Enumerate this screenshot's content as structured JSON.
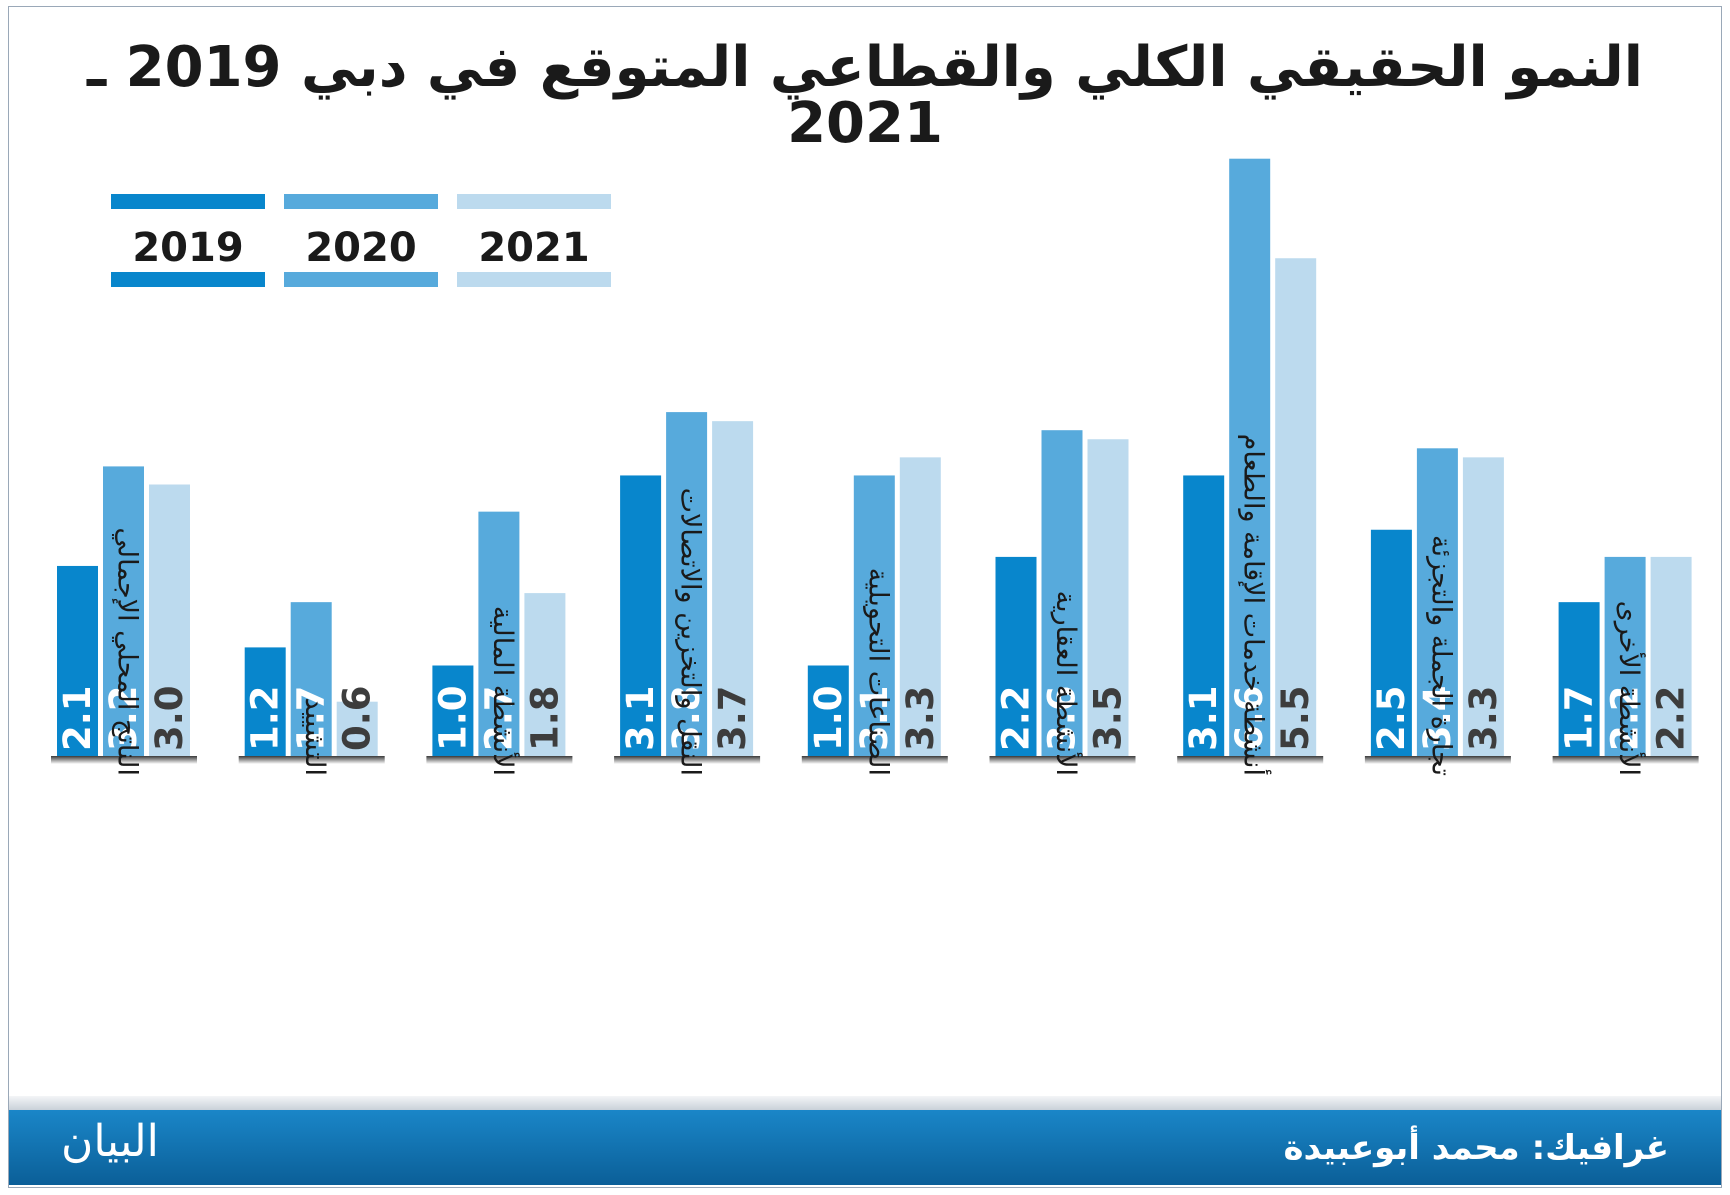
{
  "title": "النمو الحقيقي الكلي والقطاعي المتوقع في دبي 2019 ـ 2021",
  "colors": {
    "y2019": "#0886cc",
    "y2020": "#57aadc",
    "y2021": "#bcdaee"
  },
  "footer": {
    "credit": "غرافيك: محمد أبوعبيدة",
    "logo": "البيان"
  },
  "chart_data": {
    "type": "bar",
    "categories": [
      "الناتج المحلي الإجمالي",
      "التشييد",
      "الأنشطة المالية",
      "النقل والتخزين والاتصالات",
      "الصناعات التحويلية",
      "الأنشطة العقارية",
      "أنشطة خدمات الإقامة والطعام",
      "تجارة الجملة والتجزئة",
      "الأنشطة الأخرى"
    ],
    "series": [
      {
        "name": "2019",
        "values": [
          2.1,
          1.2,
          1.0,
          3.1,
          1.0,
          2.2,
          3.1,
          2.5,
          1.7
        ]
      },
      {
        "name": "2020",
        "values": [
          3.2,
          1.7,
          2.7,
          3.8,
          3.1,
          3.6,
          6.6,
          3.4,
          2.2
        ]
      },
      {
        "name": "2021",
        "values": [
          3.0,
          0.6,
          1.8,
          3.7,
          3.3,
          3.5,
          5.5,
          3.3,
          2.2
        ]
      }
    ],
    "value_labels": [
      [
        "2.1",
        "3.2",
        "3.0"
      ],
      [
        "1.2",
        "1.7",
        "0.6"
      ],
      [
        "1.0",
        "2.7",
        "1.8"
      ],
      [
        "3.1",
        "3.8",
        "3.7"
      ],
      [
        "1.0",
        "3.1",
        "3.3"
      ],
      [
        "2.2",
        "3.6",
        "3.5"
      ],
      [
        "3.1",
        "6.6",
        "5.5"
      ],
      [
        "2.5",
        "3.4",
        "3.3"
      ],
      [
        "1.7",
        "2.2",
        "2.2"
      ]
    ],
    "legend": [
      "2019",
      "2020",
      "2021"
    ],
    "legend_position": "top-left",
    "ylim": [
      0,
      6.6
    ],
    "grid": false
  }
}
